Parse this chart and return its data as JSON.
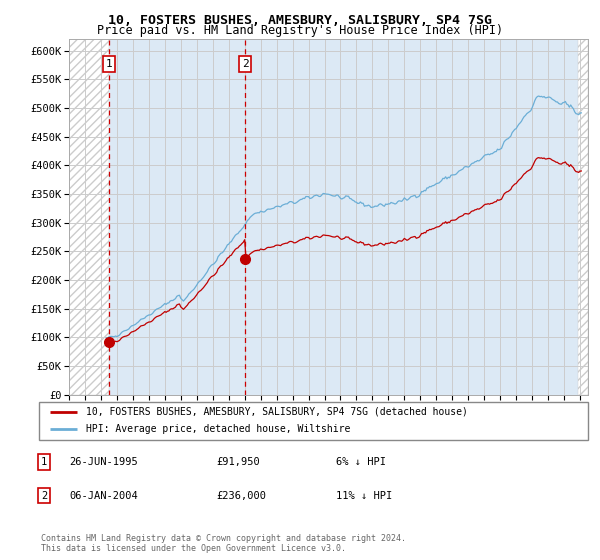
{
  "title1": "10, FOSTERS BUSHES, AMESBURY, SALISBURY, SP4 7SG",
  "title2": "Price paid vs. HM Land Registry's House Price Index (HPI)",
  "ytick_values": [
    0,
    50000,
    100000,
    150000,
    200000,
    250000,
    300000,
    350000,
    400000,
    450000,
    500000,
    550000,
    600000
  ],
  "xlim_left": 1993.0,
  "xlim_right": 2025.5,
  "ylim_bottom": 0,
  "ylim_top": 620000,
  "xticks": [
    1993,
    1994,
    1995,
    1996,
    1997,
    1998,
    1999,
    2000,
    2001,
    2002,
    2003,
    2004,
    2005,
    2006,
    2007,
    2008,
    2009,
    2010,
    2011,
    2012,
    2013,
    2014,
    2015,
    2016,
    2017,
    2018,
    2019,
    2020,
    2021,
    2022,
    2023,
    2024,
    2025
  ],
  "sale1_x": 1995.49,
  "sale1_y": 91950,
  "sale2_x": 2004.03,
  "sale2_y": 236000,
  "sale1_label": "1",
  "sale2_label": "2",
  "sale1_date": "26-JUN-1995",
  "sale1_price": "£91,950",
  "sale1_hpi": "6% ↓ HPI",
  "sale2_date": "06-JAN-2004",
  "sale2_price": "£236,000",
  "sale2_hpi": "11% ↓ HPI",
  "legend_line1": "10, FOSTERS BUSHES, AMESBURY, SALISBURY, SP4 7SG (detached house)",
  "legend_line2": "HPI: Average price, detached house, Wiltshire",
  "footer": "Contains HM Land Registry data © Crown copyright and database right 2024.\nThis data is licensed under the Open Government Licence v3.0.",
  "hpi_color": "#6baed6",
  "sold_color": "#c00000",
  "hatch_color": "#cccccc",
  "grid_color": "#cccccc",
  "vline_color": "#cc0000",
  "box_color": "#cc0000",
  "bg_blue": "#dce9f5",
  "hatch_start": 1993.0,
  "data_start": 1995.49,
  "data_end": 2024.9
}
